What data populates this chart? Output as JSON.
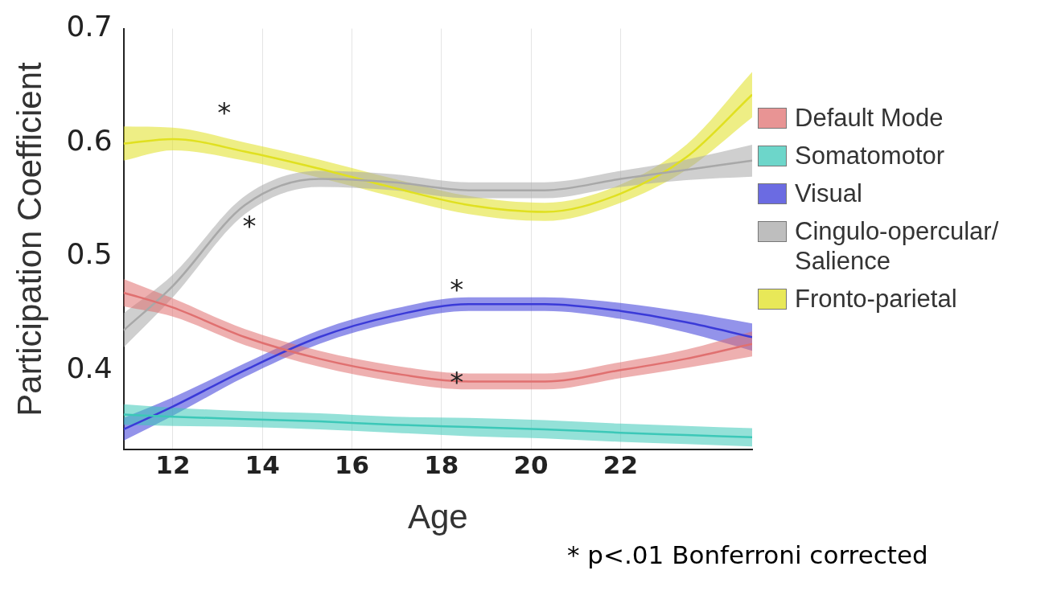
{
  "chart_data": {
    "type": "line",
    "xlabel": "Age",
    "ylabel": "Participation Coefficient",
    "x": [
      10.9,
      12,
      13.61,
      15.27,
      16.95,
      18.61,
      20.31,
      22,
      23.47,
      24.94
    ],
    "xlim": [
      10.9,
      24.94
    ],
    "xticks": [
      12,
      14,
      16,
      18,
      20,
      22
    ],
    "ylim": [
      0.33,
      0.7
    ],
    "yticks": [
      0.4,
      0.5,
      0.6,
      0.7
    ],
    "grid": "x",
    "legend": "right",
    "marker": "none",
    "line_style": "solid",
    "series": [
      {
        "name": "Default Mode",
        "color": "#e07070",
        "values": [
          0.468,
          0.455,
          0.429,
          0.41,
          0.397,
          0.39,
          0.39,
          0.4,
          0.41,
          0.423
        ],
        "lower": [
          0.456,
          0.447,
          0.422,
          0.403,
          0.39,
          0.383,
          0.383,
          0.393,
          0.402,
          0.412
        ],
        "upper": [
          0.48,
          0.463,
          0.436,
          0.417,
          0.404,
          0.397,
          0.397,
          0.407,
          0.418,
          0.434
        ]
      },
      {
        "name": "Somatomotor",
        "color": "#3cc8b8",
        "values": [
          0.361,
          0.359,
          0.357,
          0.355,
          0.352,
          0.35,
          0.348,
          0.345,
          0.343,
          0.341
        ],
        "lower": [
          0.352,
          0.351,
          0.35,
          0.348,
          0.345,
          0.342,
          0.34,
          0.337,
          0.335,
          0.333
        ],
        "upper": [
          0.37,
          0.367,
          0.364,
          0.362,
          0.359,
          0.358,
          0.356,
          0.353,
          0.351,
          0.349
        ]
      },
      {
        "name": "Visual",
        "color": "#3a3ad8",
        "values": [
          0.348,
          0.368,
          0.4,
          0.429,
          0.448,
          0.458,
          0.458,
          0.452,
          0.442,
          0.429
        ],
        "lower": [
          0.338,
          0.36,
          0.394,
          0.423,
          0.442,
          0.452,
          0.452,
          0.445,
          0.433,
          0.417
        ],
        "upper": [
          0.358,
          0.376,
          0.406,
          0.435,
          0.454,
          0.464,
          0.464,
          0.459,
          0.451,
          0.441
        ]
      },
      {
        "name": "Cingulo-opercular/ Salience",
        "color": "#a8a8a8",
        "values": [
          0.435,
          0.474,
          0.545,
          0.568,
          0.565,
          0.558,
          0.558,
          0.568,
          0.576,
          0.584
        ],
        "lower": [
          0.42,
          0.464,
          0.537,
          0.561,
          0.558,
          0.551,
          0.551,
          0.561,
          0.567,
          0.57
        ],
        "upper": [
          0.45,
          0.484,
          0.553,
          0.575,
          0.572,
          0.565,
          0.565,
          0.575,
          0.585,
          0.598
        ]
      },
      {
        "name": "Fronto-parietal",
        "color": "#e0e020",
        "values": [
          0.599,
          0.603,
          0.592,
          0.577,
          0.56,
          0.545,
          0.539,
          0.555,
          0.587,
          0.642
        ],
        "lower": [
          0.584,
          0.593,
          0.584,
          0.569,
          0.552,
          0.537,
          0.531,
          0.547,
          0.576,
          0.622
        ],
        "upper": [
          0.614,
          0.613,
          0.6,
          0.585,
          0.568,
          0.553,
          0.547,
          0.563,
          0.598,
          0.662
        ]
      }
    ],
    "annotations": [
      "*",
      "*",
      "*",
      "*",
      "* p<.01 Bonferroni corrected"
    ]
  }
}
